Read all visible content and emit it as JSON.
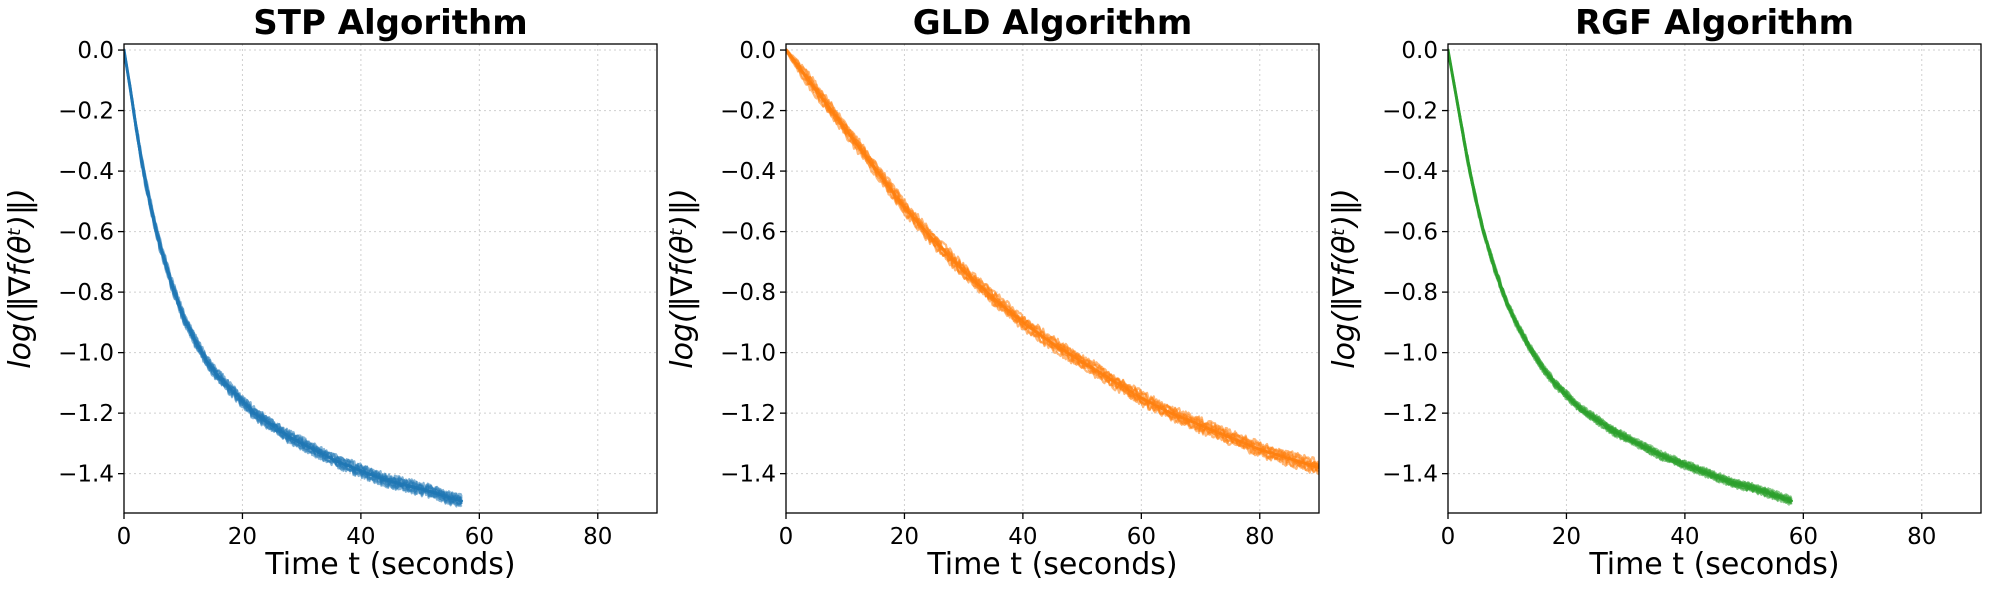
{
  "chart_data": [
    {
      "type": "line",
      "title": "STP Algorithm",
      "xlabel": "Time t (seconds)",
      "ylabel": "log(‖∇f(θᵗ)‖)",
      "xlim": [
        0,
        90
      ],
      "ylim": [
        -1.53,
        0.02
      ],
      "xticks": [
        0,
        20,
        40,
        60,
        80
      ],
      "yticks": [
        0.0,
        -0.2,
        -0.4,
        -0.6,
        -0.8,
        -1.0,
        -1.2,
        -1.4
      ],
      "ytick_labels": [
        "0.0",
        "−0.2",
        "−0.4",
        "−0.6",
        "−0.8",
        "−1.0",
        "−1.2",
        "−1.4"
      ],
      "grid": true,
      "color": "#1f77b4",
      "band_width": 0.03,
      "series": [
        {
          "x": [
            0,
            1,
            2,
            3,
            4,
            5,
            6,
            8,
            10,
            12,
            14,
            16,
            18,
            20,
            22,
            25,
            28,
            30,
            33,
            36,
            40,
            44,
            48,
            52,
            55,
            57
          ],
          "y": [
            0.0,
            -0.12,
            -0.25,
            -0.37,
            -0.47,
            -0.56,
            -0.64,
            -0.77,
            -0.88,
            -0.96,
            -1.03,
            -1.08,
            -1.12,
            -1.16,
            -1.2,
            -1.24,
            -1.28,
            -1.3,
            -1.33,
            -1.36,
            -1.39,
            -1.42,
            -1.44,
            -1.46,
            -1.48,
            -1.49
          ]
        }
      ]
    },
    {
      "type": "line",
      "title": "GLD Algorithm",
      "xlabel": "Time t (seconds)",
      "ylabel": "log(‖∇f(θᵗ)‖)",
      "xlim": [
        0,
        90
      ],
      "ylim": [
        -1.53,
        0.02
      ],
      "xticks": [
        0,
        20,
        40,
        60,
        80
      ],
      "yticks": [
        0.0,
        -0.2,
        -0.4,
        -0.6,
        -0.8,
        -1.0,
        -1.2,
        -1.4
      ],
      "ytick_labels": [
        "0.0",
        "−0.2",
        "−0.4",
        "−0.6",
        "−0.8",
        "−1.0",
        "−1.2",
        "−1.4"
      ],
      "grid": true,
      "color": "#ff7f0e",
      "band_width": 0.035,
      "series": [
        {
          "x": [
            0,
            5,
            10,
            15,
            20,
            25,
            30,
            35,
            40,
            45,
            50,
            55,
            60,
            65,
            70,
            75,
            80,
            85,
            90
          ],
          "y": [
            0.0,
            -0.13,
            -0.26,
            -0.39,
            -0.52,
            -0.63,
            -0.73,
            -0.82,
            -0.9,
            -0.97,
            -1.03,
            -1.09,
            -1.15,
            -1.2,
            -1.24,
            -1.28,
            -1.32,
            -1.35,
            -1.38
          ]
        }
      ]
    },
    {
      "type": "line",
      "title": "RGF Algorithm",
      "xlabel": "Time t (seconds)",
      "ylabel": "log(‖∇f(θᵗ)‖)",
      "xlim": [
        0,
        90
      ],
      "ylim": [
        -1.53,
        0.02
      ],
      "xticks": [
        0,
        20,
        40,
        60,
        80
      ],
      "yticks": [
        0.0,
        -0.2,
        -0.4,
        -0.6,
        -0.8,
        -1.0,
        -1.2,
        -1.4
      ],
      "ytick_labels": [
        "0.0",
        "−0.2",
        "−0.4",
        "−0.6",
        "−0.8",
        "−1.0",
        "−1.2",
        "−1.4"
      ],
      "grid": true,
      "color": "#2ca02c",
      "band_width": 0.02,
      "series": [
        {
          "x": [
            0,
            1,
            2,
            3,
            4,
            5,
            6,
            8,
            10,
            12,
            14,
            16,
            18,
            20,
            22,
            25,
            28,
            30,
            33,
            36,
            40,
            44,
            48,
            52,
            55,
            58
          ],
          "y": [
            0.0,
            -0.11,
            -0.22,
            -0.33,
            -0.43,
            -0.52,
            -0.6,
            -0.73,
            -0.84,
            -0.92,
            -0.99,
            -1.05,
            -1.1,
            -1.14,
            -1.18,
            -1.22,
            -1.26,
            -1.28,
            -1.31,
            -1.34,
            -1.37,
            -1.4,
            -1.43,
            -1.45,
            -1.47,
            -1.49
          ]
        }
      ]
    }
  ]
}
